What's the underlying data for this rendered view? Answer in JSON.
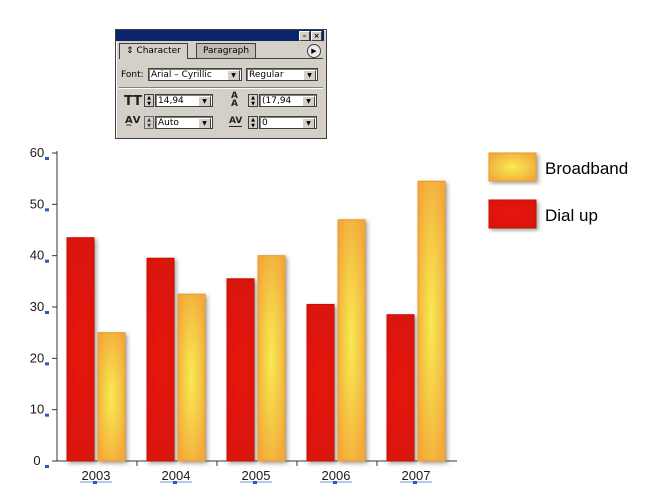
{
  "palette": {
    "tabs": [
      "Character",
      "Paragraph"
    ],
    "font_label": "Font:",
    "font_family": "Arial – Cyrillic",
    "font_style": "Regular",
    "font_size": "14,94",
    "leading": "(17,94",
    "kerning": "Auto",
    "tracking": "0",
    "icons": [
      "font-size-icon",
      "leading-icon",
      "kerning-icon",
      "tracking-icon",
      "palette-menu-icon",
      "minimize-icon",
      "close-icon"
    ]
  },
  "chart_data": {
    "type": "bar",
    "categories": [
      "2003",
      "2004",
      "2005",
      "2006",
      "2007"
    ],
    "series": [
      {
        "name": "Dial up",
        "values": [
          43.5,
          39.5,
          35.5,
          30.5,
          28.5
        ],
        "color": "#e8180d"
      },
      {
        "name": "Broadband",
        "values": [
          25,
          32.5,
          40,
          47,
          54.5
        ],
        "color": "#f5b941"
      }
    ],
    "yticks": [
      "0",
      "10",
      "20",
      "30",
      "40",
      "50",
      "60"
    ],
    "ylim": [
      0,
      60
    ],
    "grid": false,
    "legend_position": "right"
  }
}
